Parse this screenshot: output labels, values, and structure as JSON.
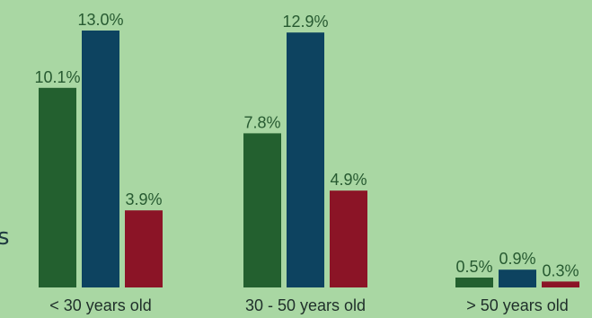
{
  "colors": {
    "background": "#a9d7a3",
    "series": [
      "#23602f",
      "#0d4360",
      "#8b1426"
    ],
    "value_label": "#275a31",
    "category_label": "#1f2f2a"
  },
  "side_glyph": "s",
  "chart_data": {
    "type": "bar",
    "categories": [
      "< 30 years old",
      "30 - 50 years old",
      "> 50 years old"
    ],
    "series": [
      {
        "values": [
          10.1,
          7.8,
          0.5
        ],
        "labels": [
          "10.1%",
          "7.8%",
          "0.5%"
        ]
      },
      {
        "values": [
          13.0,
          12.9,
          0.9
        ],
        "labels": [
          "13.0%",
          "12.9%",
          "0.9%"
        ]
      },
      {
        "values": [
          3.9,
          4.9,
          0.3
        ],
        "labels": [
          "3.9%",
          "4.9%",
          "0.3%"
        ]
      }
    ],
    "title": "",
    "xlabel": "",
    "ylabel": "",
    "ylim": [
      0,
      13.0
    ],
    "grid": false,
    "legend": "none"
  }
}
